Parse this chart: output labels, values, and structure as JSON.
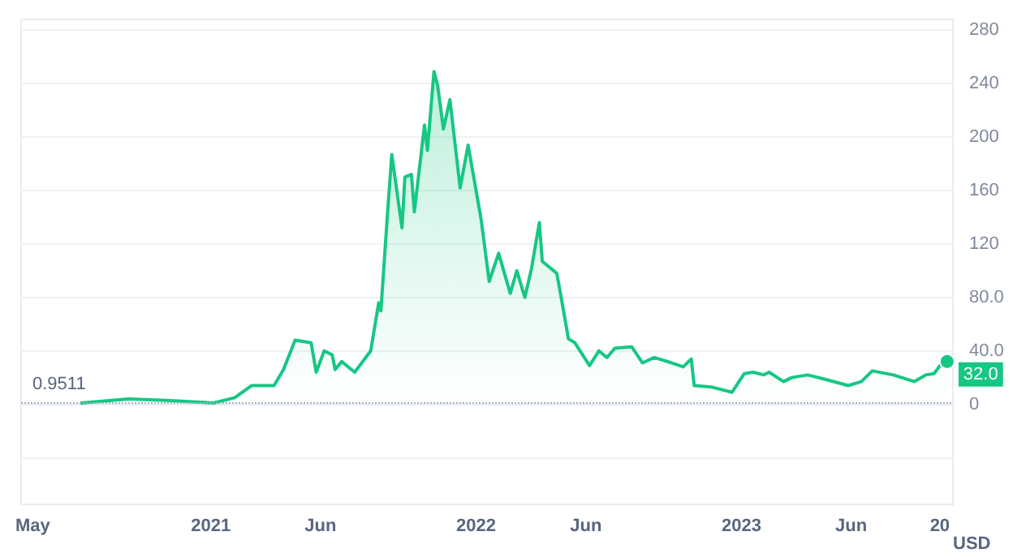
{
  "chart_data": {
    "type": "area",
    "ylabel": "USD",
    "x": [
      "2020-07-07",
      "2020-08-18",
      "2020-09-10",
      "2020-10-31",
      "2021-01-05",
      "2021-02-03",
      "2021-02-26",
      "2021-03-29",
      "2021-04-11",
      "2021-04-27",
      "2021-05-19",
      "2021-05-26",
      "2021-06-06",
      "2021-06-17",
      "2021-06-21",
      "2021-06-30",
      "2021-07-18",
      "2021-08-09",
      "2021-08-20",
      "2021-08-23",
      "2021-09-01",
      "2021-09-07",
      "2021-09-21",
      "2021-09-25",
      "2021-10-04",
      "2021-10-08",
      "2021-10-22",
      "2021-10-26",
      "2021-11-04",
      "2021-11-09",
      "2021-11-17",
      "2021-11-26",
      "2021-12-10",
      "2021-12-21",
      "2022-01-08",
      "2022-01-19",
      "2022-02-01",
      "2022-02-17",
      "2022-02-26",
      "2022-03-09",
      "2022-03-18",
      "2022-03-29",
      "2022-04-02",
      "2022-04-22",
      "2022-04-29",
      "2022-05-08",
      "2022-05-17",
      "2022-06-06",
      "2022-06-19",
      "2022-06-30",
      "2022-07-11",
      "2022-08-03",
      "2022-08-18",
      "2022-09-03",
      "2022-09-27",
      "2022-10-13",
      "2022-10-24",
      "2022-10-28",
      "2022-11-20",
      "2022-12-19",
      "2023-01-05",
      "2023-01-17",
      "2023-02-01",
      "2023-02-08",
      "2023-02-28",
      "2023-03-11",
      "2023-04-02",
      "2023-04-24",
      "2023-05-28",
      "2023-06-15",
      "2023-06-30",
      "2023-07-29",
      "2023-08-27",
      "2023-09-12",
      "2023-09-23",
      "2023-10-04",
      "2023-10-11"
    ],
    "series": [
      {
        "color": "#16c784",
        "values": [
          1,
          3,
          4,
          3,
          1,
          5,
          14,
          14,
          26,
          48,
          46,
          24,
          40,
          37,
          26,
          32,
          24,
          40,
          76,
          70,
          142,
          187,
          132,
          170,
          172,
          144,
          209,
          190,
          249,
          239,
          206,
          228,
          162,
          194,
          138,
          92,
          113,
          83,
          100,
          80,
          101,
          136,
          107,
          98,
          77,
          49,
          46,
          29,
          40,
          35,
          42,
          43,
          31,
          35,
          31,
          28,
          34,
          14,
          13,
          9,
          23,
          24,
          22,
          24,
          17,
          20,
          22,
          19,
          14,
          17,
          25,
          22,
          17,
          22,
          23,
          31,
          32
        ]
      }
    ],
    "xlim": [
      "2020-04-15",
      "2023-10-19"
    ],
    "xticks": [
      {
        "value": "2020-05-01",
        "label": "May"
      },
      {
        "value": "2021-01-01",
        "label": "2021"
      },
      {
        "value": "2021-06-01",
        "label": "Jun"
      },
      {
        "value": "2022-01-01",
        "label": "2022"
      },
      {
        "value": "2022-06-01",
        "label": "Jun"
      },
      {
        "value": "2023-01-01",
        "label": "2023"
      },
      {
        "value": "2023-06-01",
        "label": "Jun"
      },
      {
        "value": "2023-10-01",
        "label": "20"
      }
    ],
    "ylim": [
      -75,
      288
    ],
    "yticks": [
      {
        "value": -40,
        "label": null
      },
      0,
      {
        "value": 40,
        "label": "40.0"
      },
      {
        "value": 80,
        "label": "80.0"
      },
      120,
      160,
      200,
      240,
      280
    ],
    "ref_lines": [
      {
        "axis": "y",
        "value": 0.9511,
        "label": "0.9511",
        "color": "#a6b0c3",
        "line_style": "dotted"
      }
    ],
    "annotations": [
      {
        "text": "32.0",
        "x": "2023-10-11",
        "y": 32
      }
    ],
    "grid": "y",
    "marker": "none",
    "line_style": "solid"
  }
}
